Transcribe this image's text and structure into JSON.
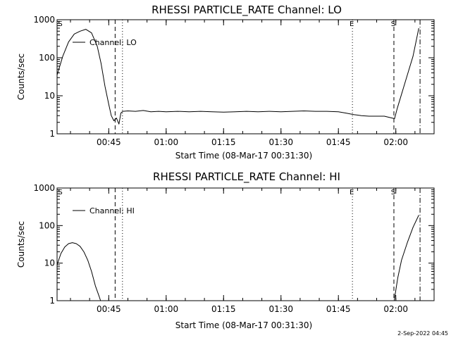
{
  "chart_data": [
    {
      "type": "line",
      "title": "RHESSI PARTICLE_RATE Channel: LO",
      "xlabel": "Start Time (08-Mar-17 00:31:30)",
      "ylabel": "Counts/sec",
      "yscale": "log",
      "ylim": [
        1,
        1000
      ],
      "xlim": [
        "00:31:30",
        "02:10:00"
      ],
      "ytick_labels": [
        "1",
        "10",
        "100",
        "1000"
      ],
      "xtick_labels": [
        "00:45",
        "01:00",
        "01:15",
        "01:30",
        "01:45",
        "02:00"
      ],
      "legend": {
        "placement": "top-left",
        "entries": [
          "Channel: LO"
        ]
      },
      "series": [
        {
          "name": "Channel: LO",
          "x": [
            "00:31:30",
            "00:33:00",
            "00:34:30",
            "00:36:00",
            "00:37:30",
            "00:39:00",
            "00:40:30",
            "00:42:00",
            "00:43:00",
            "00:44:00",
            "00:45:00",
            "00:45:40",
            "00:46:20",
            "00:47:00",
            "00:47:40",
            "00:48:10",
            "00:48:40",
            "00:50:00",
            "00:52:00",
            "00:54:00",
            "00:56:00",
            "00:58:00",
            "01:00:00",
            "01:03:00",
            "01:06:00",
            "01:09:00",
            "01:12:00",
            "01:15:00",
            "01:18:00",
            "01:21:00",
            "01:24:00",
            "01:27:00",
            "01:30:00",
            "01:33:00",
            "01:36:00",
            "01:39:00",
            "01:42:00",
            "01:45:00",
            "01:47:00",
            "01:49:00",
            "01:51:00",
            "01:53:00",
            "01:55:00",
            "01:57:00",
            "01:59:00",
            "01:59:40",
            "02:00:20",
            "02:01:30",
            "02:03:00",
            "02:04:30",
            "02:06:00"
          ],
          "y": [
            35,
            110,
            260,
            420,
            500,
            560,
            450,
            200,
            70,
            18,
            6,
            3,
            2.2,
            2.6,
            1.8,
            3.5,
            3.9,
            4.0,
            3.9,
            4.1,
            3.8,
            3.9,
            3.8,
            3.9,
            3.8,
            3.9,
            3.8,
            3.7,
            3.8,
            3.9,
            3.8,
            3.9,
            3.8,
            3.9,
            4.0,
            3.9,
            3.9,
            3.8,
            3.5,
            3.2,
            3.0,
            2.9,
            2.9,
            2.9,
            2.6,
            2.5,
            4.5,
            11,
            35,
            110,
            600
          ]
        }
      ],
      "annotations": [
        {
          "label": "S",
          "x": "00:31:45",
          "style": "text"
        },
        {
          "label": "",
          "x": "00:46:40",
          "style": "dashed"
        },
        {
          "label": "",
          "x": "00:48:35",
          "style": "dotted"
        },
        {
          "label": "E",
          "x": "01:48:40",
          "style": "dotted"
        },
        {
          "label": "S",
          "x": "01:59:30",
          "style": "dashed"
        },
        {
          "label": "",
          "x": "02:06:20",
          "style": "dash-dot"
        }
      ]
    },
    {
      "type": "line",
      "title": "RHESSI PARTICLE_RATE Channel: HI",
      "xlabel": "Start Time (08-Mar-17 00:31:30)",
      "ylabel": "Counts/sec",
      "yscale": "log",
      "ylim": [
        1,
        1000
      ],
      "xlim": [
        "00:31:30",
        "02:10:00"
      ],
      "ytick_labels": [
        "1",
        "10",
        "100",
        "1000"
      ],
      "xtick_labels": [
        "00:45",
        "01:00",
        "01:15",
        "01:30",
        "01:45",
        "02:00"
      ],
      "legend": {
        "placement": "top-left",
        "entries": [
          "Channel: HI"
        ]
      },
      "series": [
        {
          "name": "Channel: HI",
          "x": [
            "00:31:30",
            "00:32:30",
            "00:33:30",
            "00:34:30",
            "00:35:30",
            "00:36:30",
            "00:37:30",
            "00:38:30",
            "00:39:30",
            "00:40:30",
            "00:41:30",
            "00:42:30",
            "00:43:00"
          ],
          "y": [
            9,
            18,
            27,
            33,
            35,
            33,
            28,
            20,
            12,
            6,
            2.5,
            1.3,
            0.9
          ]
        },
        {
          "name": "",
          "x": [
            "01:59:30",
            "02:00:30",
            "02:01:30",
            "02:03:00",
            "02:04:30",
            "02:06:00"
          ],
          "y": [
            0.9,
            4,
            12,
            35,
            90,
            190
          ]
        }
      ],
      "annotations": [
        {
          "label": "S",
          "x": "00:31:45",
          "style": "text"
        },
        {
          "label": "",
          "x": "00:46:40",
          "style": "dashed"
        },
        {
          "label": "",
          "x": "00:48:35",
          "style": "dotted"
        },
        {
          "label": "E",
          "x": "01:48:40",
          "style": "dotted"
        },
        {
          "label": "S",
          "x": "01:59:30",
          "style": "dashed"
        },
        {
          "label": "",
          "x": "02:06:20",
          "style": "dash-dot"
        }
      ]
    }
  ],
  "timestamp": "2-Sep-2022 04:45"
}
